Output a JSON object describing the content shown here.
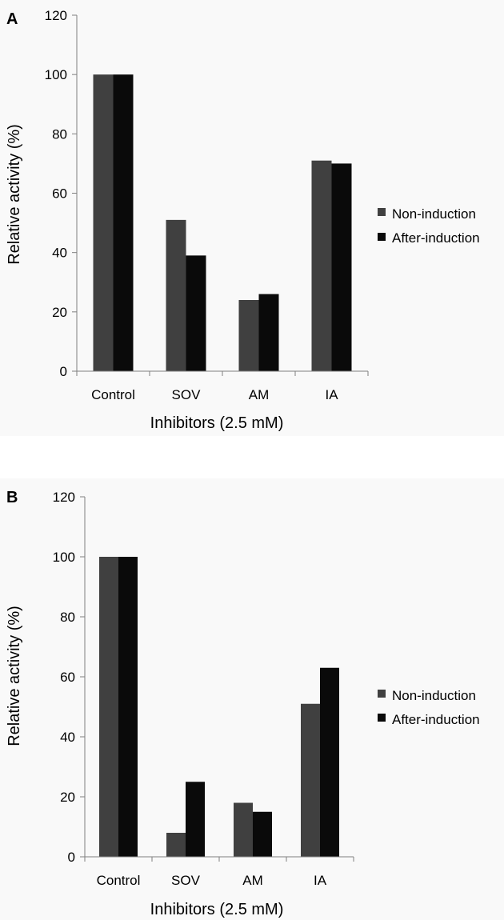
{
  "colors": {
    "series_1": "#404040",
    "series_2": "#0a0a0a",
    "axis": "#7f7f7f",
    "plot_bg": "#f9f9f9"
  },
  "chart_data": [
    {
      "panel_label": "A",
      "type": "bar",
      "categories": [
        "Control",
        "SOV",
        "AM",
        "IA"
      ],
      "series": [
        {
          "name": "Non-induction",
          "values": [
            100,
            51,
            24,
            71
          ]
        },
        {
          "name": "After-induction",
          "values": [
            100,
            39,
            26,
            70
          ]
        }
      ],
      "ylim": [
        0,
        120
      ],
      "yticks": [
        "0",
        "20",
        "40",
        "60",
        "80",
        "100",
        "120"
      ],
      "xlabel": "Inhibitors (2.5 mM)",
      "ylabel": "Relative activity (%)",
      "grid": false,
      "legend": "right"
    },
    {
      "panel_label": "B",
      "type": "bar",
      "categories": [
        "Control",
        "SOV",
        "AM",
        "IA"
      ],
      "series": [
        {
          "name": "Non-induction",
          "values": [
            100,
            8,
            18,
            51
          ]
        },
        {
          "name": "After-induction",
          "values": [
            100,
            25,
            15,
            63
          ]
        }
      ],
      "ylim": [
        0,
        120
      ],
      "yticks": [
        "0",
        "20",
        "40",
        "60",
        "80",
        "100",
        "120"
      ],
      "xlabel": "Inhibitors (2.5 mM)",
      "ylabel": "Relative activity (%)",
      "grid": false,
      "legend": "right"
    }
  ]
}
